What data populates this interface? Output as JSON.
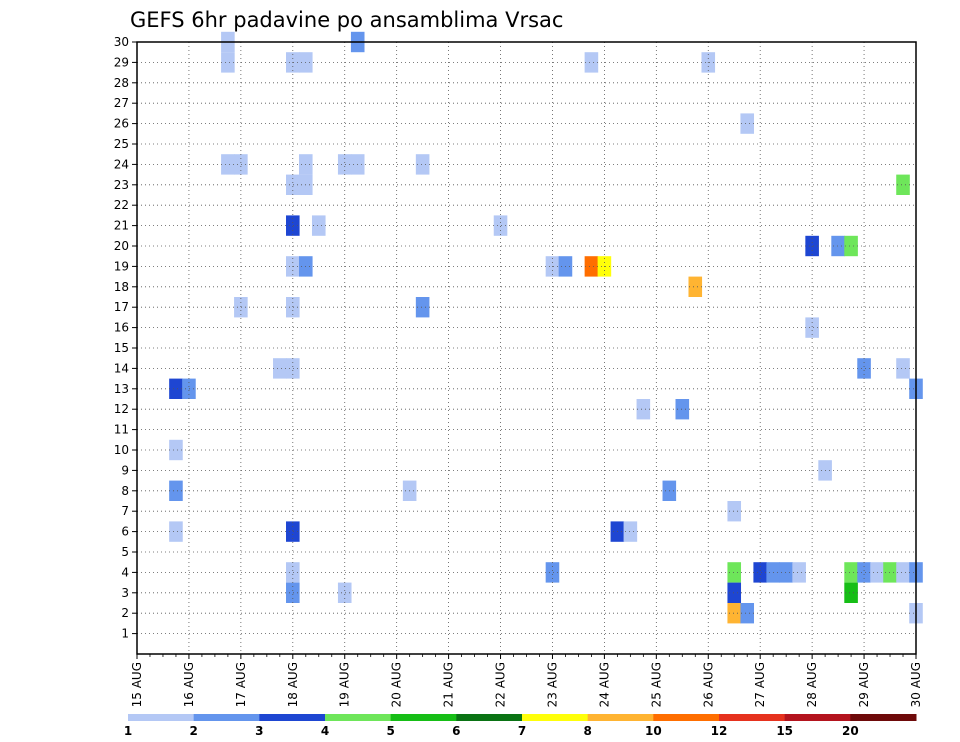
{
  "chart_data": {
    "type": "heatmap",
    "title": "GEFS 6hr padavine po ansamblima Vrsac",
    "x_tick_labels": [
      "15 AUG",
      "16 AUG",
      "17 AUG",
      "18 AUG",
      "19 AUG",
      "20 AUG",
      "21 AUG",
      "22 AUG",
      "23 AUG",
      "24 AUG",
      "25 AUG",
      "26 AUG",
      "27 AUG",
      "28 AUG",
      "29 AUG",
      "30 AUG"
    ],
    "x_range_days": [
      0,
      15
    ],
    "y_tick_labels": [
      "1",
      "2",
      "3",
      "4",
      "5",
      "6",
      "7",
      "8",
      "9",
      "10",
      "11",
      "12",
      "13",
      "14",
      "15",
      "16",
      "17",
      "18",
      "19",
      "20",
      "21",
      "22",
      "23",
      "24",
      "25",
      "26",
      "27",
      "28",
      "29",
      "30"
    ],
    "y_range": [
      0,
      30
    ],
    "grid": true,
    "colorbar": {
      "labels": [
        "1",
        "2",
        "3",
        "4",
        "5",
        "6",
        "7",
        "8",
        "10",
        "12",
        "15",
        "20"
      ],
      "colors": [
        "#b4c8f5",
        "#6495ed",
        "#1e46d2",
        "#6ee65a",
        "#16be16",
        "#0a7314",
        "#ffff0a",
        "#ffb432",
        "#ff6e00",
        "#e6321e",
        "#b4141e",
        "#6e0a0a"
      ]
    },
    "cells": [
      {
        "day": 1.75,
        "member": 29,
        "level": 1
      },
      {
        "day": 1.75,
        "member": 30,
        "level": 1
      },
      {
        "day": 4.25,
        "member": 30,
        "level": 2
      },
      {
        "day": 3,
        "member": 29,
        "level": 1
      },
      {
        "day": 3.25,
        "member": 29,
        "level": 1
      },
      {
        "day": 8.75,
        "member": 29,
        "level": 1
      },
      {
        "day": 11,
        "member": 29,
        "level": 1
      },
      {
        "day": 11.75,
        "member": 26,
        "level": 1
      },
      {
        "day": 1.75,
        "member": 24,
        "level": 1
      },
      {
        "day": 2,
        "member": 24,
        "level": 1
      },
      {
        "day": 3.25,
        "member": 24,
        "level": 1
      },
      {
        "day": 3.25,
        "member": 23,
        "level": 1
      },
      {
        "day": 3,
        "member": 23,
        "level": 1
      },
      {
        "day": 4,
        "member": 24,
        "level": 1
      },
      {
        "day": 4.25,
        "member": 24,
        "level": 1
      },
      {
        "day": 5.5,
        "member": 24,
        "level": 1
      },
      {
        "day": 14.75,
        "member": 23,
        "level": 4
      },
      {
        "day": 3,
        "member": 21,
        "level": 3
      },
      {
        "day": 3.5,
        "member": 21,
        "level": 1
      },
      {
        "day": 7,
        "member": 21,
        "level": 1
      },
      {
        "day": 13,
        "member": 20,
        "level": 3
      },
      {
        "day": 13.5,
        "member": 20,
        "level": 2
      },
      {
        "day": 13.75,
        "member": 20,
        "level": 4
      },
      {
        "day": 3,
        "member": 19,
        "level": 1
      },
      {
        "day": 3.25,
        "member": 19,
        "level": 2
      },
      {
        "day": 8,
        "member": 19,
        "level": 1
      },
      {
        "day": 8.25,
        "member": 19,
        "level": 2
      },
      {
        "day": 8.75,
        "member": 19,
        "level": 9
      },
      {
        "day": 9,
        "member": 19,
        "level": 7
      },
      {
        "day": 10.75,
        "member": 18,
        "level": 8
      },
      {
        "day": 2,
        "member": 17,
        "level": 1
      },
      {
        "day": 3,
        "member": 17,
        "level": 1
      },
      {
        "day": 5.5,
        "member": 17,
        "level": 2
      },
      {
        "day": 13,
        "member": 16,
        "level": 1
      },
      {
        "day": 2.75,
        "member": 14,
        "level": 1
      },
      {
        "day": 3,
        "member": 14,
        "level": 1
      },
      {
        "day": 14,
        "member": 14,
        "level": 2
      },
      {
        "day": 14.75,
        "member": 14,
        "level": 1
      },
      {
        "day": 0.75,
        "member": 13,
        "level": 3
      },
      {
        "day": 1,
        "member": 13,
        "level": 2
      },
      {
        "day": 15,
        "member": 13,
        "level": 2
      },
      {
        "day": 9.75,
        "member": 12,
        "level": 1
      },
      {
        "day": 10.5,
        "member": 12,
        "level": 2
      },
      {
        "day": 0.75,
        "member": 10,
        "level": 1
      },
      {
        "day": 13.25,
        "member": 9,
        "level": 1
      },
      {
        "day": 0.75,
        "member": 8,
        "level": 2
      },
      {
        "day": 5.25,
        "member": 8,
        "level": 1
      },
      {
        "day": 10.25,
        "member": 8,
        "level": 2
      },
      {
        "day": 11.5,
        "member": 7,
        "level": 1
      },
      {
        "day": 0.75,
        "member": 6,
        "level": 1
      },
      {
        "day": 3,
        "member": 6,
        "level": 3
      },
      {
        "day": 9.25,
        "member": 6,
        "level": 3
      },
      {
        "day": 9.5,
        "member": 6,
        "level": 1
      },
      {
        "day": 3,
        "member": 4,
        "level": 1
      },
      {
        "day": 8,
        "member": 4,
        "level": 2
      },
      {
        "day": 11.5,
        "member": 4,
        "level": 4
      },
      {
        "day": 12,
        "member": 4,
        "level": 3
      },
      {
        "day": 12.25,
        "member": 4,
        "level": 2
      },
      {
        "day": 12.5,
        "member": 4,
        "level": 2
      },
      {
        "day": 12.75,
        "member": 4,
        "level": 1
      },
      {
        "day": 13.75,
        "member": 4,
        "level": 4
      },
      {
        "day": 14,
        "member": 4,
        "level": 2
      },
      {
        "day": 14.25,
        "member": 4,
        "level": 1
      },
      {
        "day": 14.5,
        "member": 4,
        "level": 4
      },
      {
        "day": 14.75,
        "member": 4,
        "level": 1
      },
      {
        "day": 15,
        "member": 4,
        "level": 2
      },
      {
        "day": 3,
        "member": 3,
        "level": 2
      },
      {
        "day": 4,
        "member": 3,
        "level": 1
      },
      {
        "day": 11.5,
        "member": 3,
        "level": 3
      },
      {
        "day": 13.75,
        "member": 3,
        "level": 5
      },
      {
        "day": 11.5,
        "member": 2,
        "level": 8
      },
      {
        "day": 11.75,
        "member": 2,
        "level": 2
      },
      {
        "day": 15,
        "member": 2,
        "level": 1
      }
    ]
  }
}
